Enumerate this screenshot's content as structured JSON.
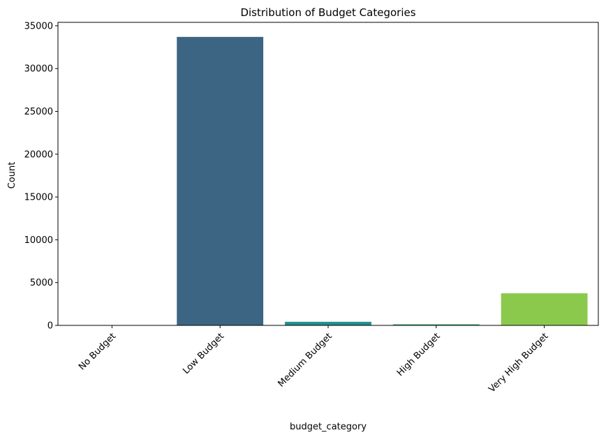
{
  "chart_data": {
    "type": "bar",
    "title": "Distribution of Budget Categories",
    "xlabel": "budget_category",
    "ylabel": "Count",
    "categories": [
      "No Budget",
      "Low Budget",
      "Medium Budget",
      "High Budget",
      "Very High Budget"
    ],
    "values": [
      0,
      33700,
      420,
      130,
      3750
    ],
    "colors": [
      "#440154",
      "#3b6583",
      "#21918c",
      "#3dab6e",
      "#8bc94d"
    ],
    "ylim": [
      0,
      35400
    ],
    "yticks": [
      0,
      5000,
      10000,
      15000,
      20000,
      25000,
      30000,
      35000
    ],
    "ytick_labels": [
      "0",
      "5000",
      "10000",
      "15000",
      "20000",
      "25000",
      "30000",
      "35000"
    ],
    "grid": false,
    "legend": "none",
    "xtick_rotation": 45
  }
}
